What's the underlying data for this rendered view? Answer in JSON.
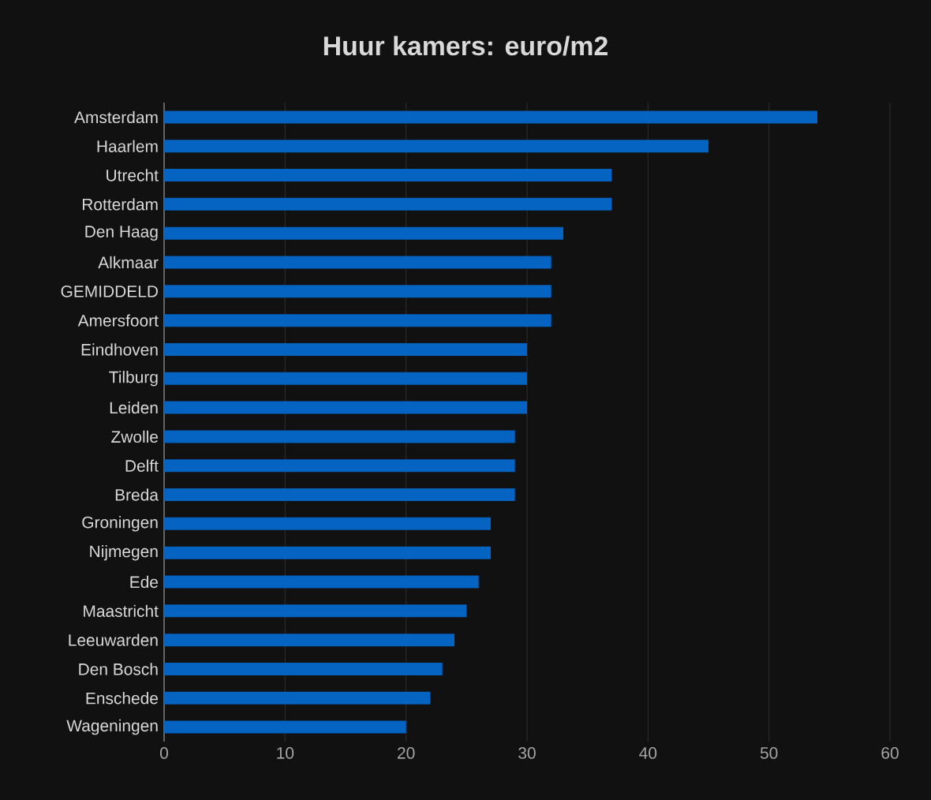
{
  "chart_data": {
    "type": "bar",
    "orientation": "horizontal",
    "title": "Huur kamers: euro/m2",
    "categories": [
      "Amsterdam",
      "Haarlem",
      "Utrecht",
      "Rotterdam",
      "Den Haag",
      "Alkmaar",
      "GEMIDDELD",
      "Amersfoort",
      "Eindhoven",
      "Tilburg",
      "Leiden",
      "Zwolle",
      "Delft",
      "Breda",
      "Groningen",
      "Nijmegen",
      "Ede",
      "Maastricht",
      "Leeuwarden",
      "Den Bosch",
      "Enschede",
      "Wageningen"
    ],
    "values": [
      54,
      45,
      37,
      37,
      33,
      32,
      32,
      32,
      30,
      30,
      30,
      29,
      29,
      29,
      27,
      27,
      26,
      25,
      24,
      23,
      22,
      20
    ],
    "color": "#0563c1",
    "xlim": [
      0,
      60
    ],
    "xticks": [
      0,
      10,
      20,
      30,
      40,
      50,
      60
    ],
    "grid": "x"
  }
}
